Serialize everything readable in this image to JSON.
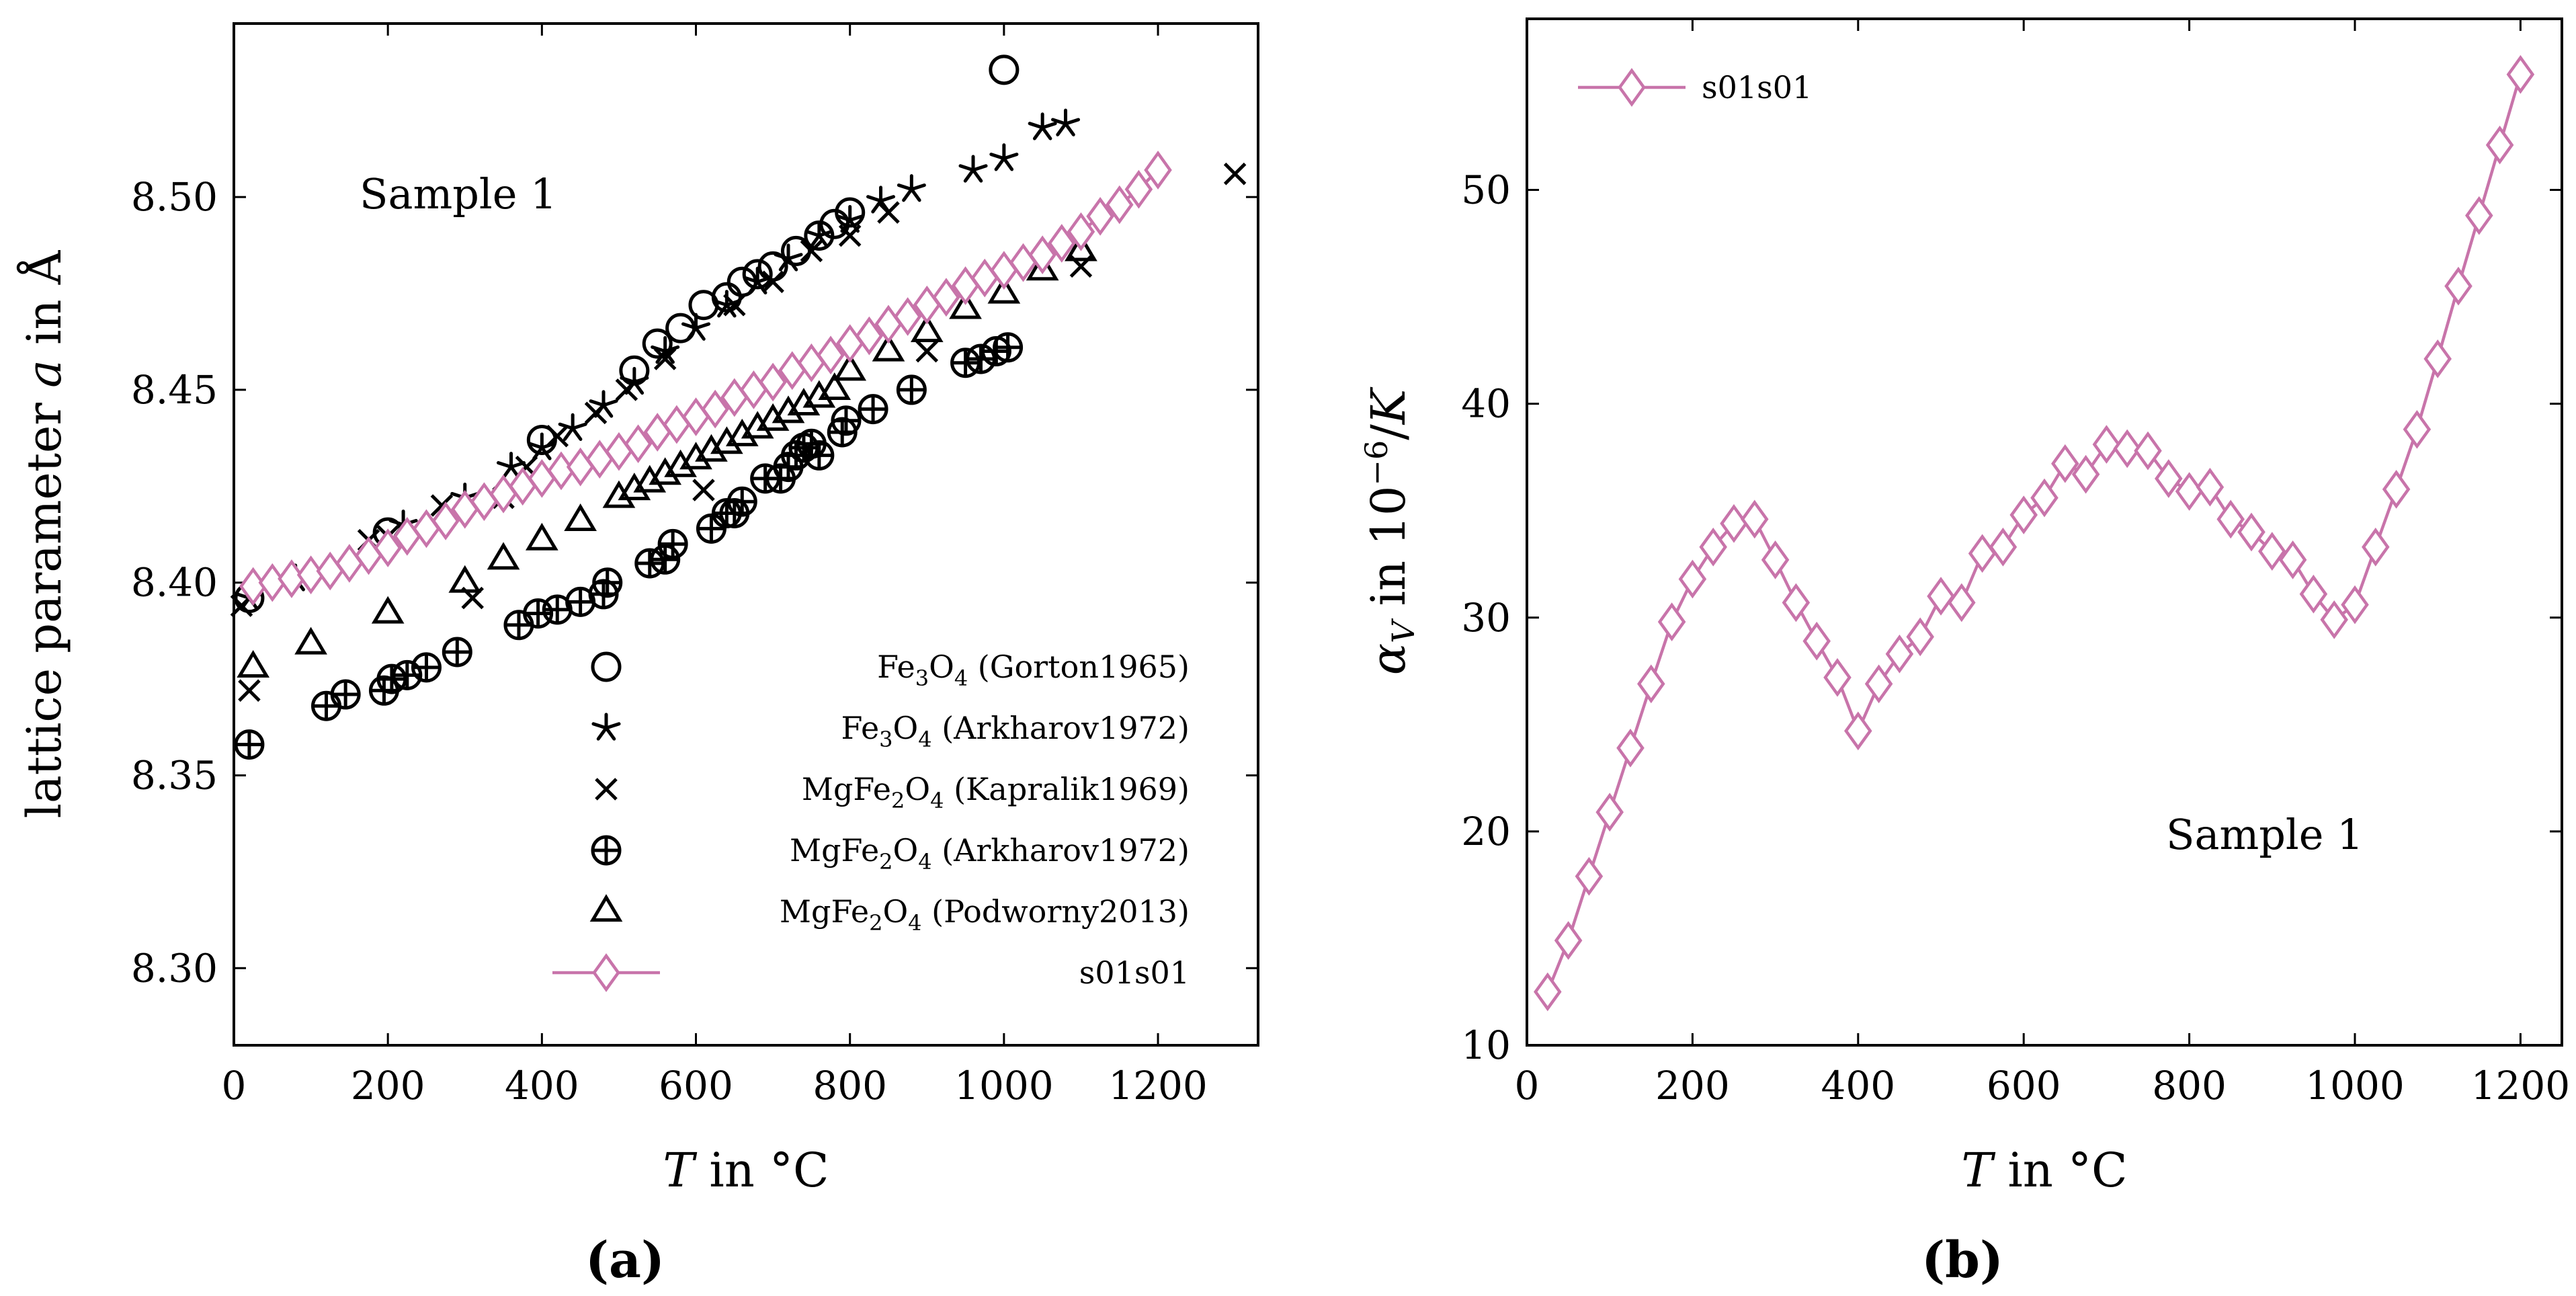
{
  "chart_data": [
    {
      "panel": "(a)",
      "type": "scatter",
      "xlabel": "T in °C",
      "ylabel": "lattice parameter a in Å",
      "xlim": [
        0,
        1330
      ],
      "ylim": [
        8.28,
        8.545
      ],
      "xticks": [
        0,
        200,
        400,
        600,
        800,
        1000,
        1200
      ],
      "yticks": [
        8.3,
        8.35,
        8.4,
        8.45,
        8.5
      ],
      "annotation": "Sample 1",
      "legend_position": "bottom-right",
      "series": [
        {
          "name": "Fe3O4 (Gorton1965)",
          "marker": "circle",
          "color": "#000000",
          "points": [
            [
              20,
              8.396
            ],
            [
              200,
              8.413
            ],
            [
              400,
              8.437
            ],
            [
              520,
              8.455
            ],
            [
              550,
              8.462
            ],
            [
              580,
              8.466
            ],
            [
              610,
              8.472
            ],
            [
              640,
              8.474
            ],
            [
              660,
              8.478
            ],
            [
              680,
              8.48
            ],
            [
              700,
              8.482
            ],
            [
              730,
              8.486
            ],
            [
              760,
              8.49
            ],
            [
              780,
              8.493
            ],
            [
              800,
              8.496
            ],
            [
              1000,
              8.533
            ]
          ]
        },
        {
          "name": "Fe3O4 (Arkharov1972)",
          "marker": "star",
          "color": "#000000",
          "points": [
            [
              20,
              8.396
            ],
            [
              80,
              8.401
            ],
            [
              220,
              8.415
            ],
            [
              300,
              8.422
            ],
            [
              360,
              8.43
            ],
            [
              400,
              8.435
            ],
            [
              440,
              8.44
            ],
            [
              480,
              8.446
            ],
            [
              520,
              8.452
            ],
            [
              560,
              8.46
            ],
            [
              600,
              8.466
            ],
            [
              640,
              8.472
            ],
            [
              680,
              8.478
            ],
            [
              720,
              8.484
            ],
            [
              760,
              8.49
            ],
            [
              800,
              8.494
            ],
            [
              840,
              8.499
            ],
            [
              880,
              8.502
            ],
            [
              960,
              8.507
            ],
            [
              1000,
              8.51
            ],
            [
              1050,
              8.518
            ],
            [
              1080,
              8.519
            ]
          ]
        },
        {
          "name": "MgFe2O4 (Kapralik1969)",
          "marker": "x",
          "color": "#000000",
          "points": [
            [
              10,
              8.394
            ],
            [
              20,
              8.372
            ],
            [
              175,
              8.411
            ],
            [
              200,
              8.412
            ],
            [
              270,
              8.42
            ],
            [
              310,
              8.396
            ],
            [
              350,
              8.422
            ],
            [
              380,
              8.43
            ],
            [
              420,
              8.438
            ],
            [
              470,
              8.444
            ],
            [
              510,
              8.45
            ],
            [
              560,
              8.458
            ],
            [
              610,
              8.424
            ],
            [
              650,
              8.472
            ],
            [
              700,
              8.478
            ],
            [
              750,
              8.486
            ],
            [
              800,
              8.49
            ],
            [
              850,
              8.496
            ],
            [
              900,
              8.46
            ],
            [
              1100,
              8.482
            ],
            [
              1300,
              8.506
            ]
          ]
        },
        {
          "name": "MgFe2O4 (Arkharov1972)",
          "marker": "circleplus",
          "color": "#000000",
          "points": [
            [
              20,
              8.358
            ],
            [
              120,
              8.368
            ],
            [
              145,
              8.371
            ],
            [
              195,
              8.372
            ],
            [
              205,
              8.375
            ],
            [
              225,
              8.376
            ],
            [
              250,
              8.378
            ],
            [
              290,
              8.382
            ],
            [
              370,
              8.389
            ],
            [
              395,
              8.392
            ],
            [
              420,
              8.393
            ],
            [
              450,
              8.395
            ],
            [
              480,
              8.397
            ],
            [
              485,
              8.4
            ],
            [
              540,
              8.405
            ],
            [
              560,
              8.406
            ],
            [
              570,
              8.41
            ],
            [
              620,
              8.414
            ],
            [
              640,
              8.418
            ],
            [
              650,
              8.418
            ],
            [
              660,
              8.421
            ],
            [
              690,
              8.427
            ],
            [
              710,
              8.427
            ],
            [
              720,
              8.43
            ],
            [
              730,
              8.433
            ],
            [
              740,
              8.435
            ],
            [
              750,
              8.436
            ],
            [
              760,
              8.433
            ],
            [
              790,
              8.439
            ],
            [
              795,
              8.442
            ],
            [
              830,
              8.445
            ],
            [
              880,
              8.45
            ],
            [
              950,
              8.457
            ],
            [
              970,
              8.458
            ],
            [
              990,
              8.46
            ],
            [
              1005,
              8.461
            ]
          ]
        },
        {
          "name": "MgFe2O4 (Podworny2013)",
          "marker": "triangle",
          "color": "#000000",
          "points": [
            [
              25,
              8.378
            ],
            [
              100,
              8.384
            ],
            [
              200,
              8.392
            ],
            [
              300,
              8.4
            ],
            [
              350,
              8.406
            ],
            [
              400,
              8.411
            ],
            [
              450,
              8.416
            ],
            [
              500,
              8.422
            ],
            [
              520,
              8.424
            ],
            [
              540,
              8.426
            ],
            [
              560,
              8.428
            ],
            [
              580,
              8.43
            ],
            [
              600,
              8.432
            ],
            [
              620,
              8.434
            ],
            [
              640,
              8.436
            ],
            [
              660,
              8.438
            ],
            [
              680,
              8.44
            ],
            [
              700,
              8.442
            ],
            [
              720,
              8.444
            ],
            [
              740,
              8.446
            ],
            [
              760,
              8.448
            ],
            [
              780,
              8.45
            ],
            [
              800,
              8.455
            ],
            [
              850,
              8.46
            ],
            [
              900,
              8.465
            ],
            [
              950,
              8.471
            ],
            [
              1000,
              8.475
            ],
            [
              1050,
              8.481
            ],
            [
              1100,
              8.486
            ]
          ]
        },
        {
          "name": "s01s01",
          "marker": "diamond",
          "line": true,
          "color": "#c874aa",
          "points": [
            [
              25,
              8.399
            ],
            [
              50,
              8.4
            ],
            [
              75,
              8.401
            ],
            [
              100,
              8.402
            ],
            [
              125,
              8.403
            ],
            [
              150,
              8.405
            ],
            [
              175,
              8.407
            ],
            [
              200,
              8.409
            ],
            [
              225,
              8.412
            ],
            [
              250,
              8.414
            ],
            [
              275,
              8.416
            ],
            [
              300,
              8.419
            ],
            [
              325,
              8.421
            ],
            [
              350,
              8.423
            ],
            [
              375,
              8.425
            ],
            [
              400,
              8.427
            ],
            [
              425,
              8.429
            ],
            [
              450,
              8.43
            ],
            [
              475,
              8.432
            ],
            [
              500,
              8.434
            ],
            [
              525,
              8.436
            ],
            [
              550,
              8.439
            ],
            [
              575,
              8.441
            ],
            [
              600,
              8.443
            ],
            [
              625,
              8.445
            ],
            [
              650,
              8.448
            ],
            [
              675,
              8.45
            ],
            [
              700,
              8.452
            ],
            [
              725,
              8.455
            ],
            [
              750,
              8.457
            ],
            [
              775,
              8.459
            ],
            [
              800,
              8.462
            ],
            [
              825,
              8.464
            ],
            [
              850,
              8.467
            ],
            [
              875,
              8.469
            ],
            [
              900,
              8.472
            ],
            [
              925,
              8.474
            ],
            [
              950,
              8.477
            ],
            [
              975,
              8.479
            ],
            [
              1000,
              8.481
            ],
            [
              1025,
              8.483
            ],
            [
              1050,
              8.485
            ],
            [
              1075,
              8.488
            ],
            [
              1100,
              8.491
            ],
            [
              1125,
              8.495
            ],
            [
              1150,
              8.498
            ],
            [
              1175,
              8.502
            ],
            [
              1200,
              8.507
            ]
          ]
        }
      ]
    },
    {
      "panel": "(b)",
      "type": "line",
      "xlabel": "T in °C",
      "ylabel": "αV in 10⁻⁶/K",
      "xlim": [
        0,
        1250
      ],
      "ylim": [
        10,
        58
      ],
      "xticks": [
        0,
        200,
        400,
        600,
        800,
        1000,
        1200
      ],
      "yticks": [
        10,
        20,
        30,
        40,
        50
      ],
      "annotation": "Sample 1",
      "legend_position": "top-left",
      "series": [
        {
          "name": "s01s01",
          "marker": "diamond",
          "color": "#c874aa",
          "x": [
            25,
            50,
            75,
            100,
            125,
            150,
            175,
            200,
            225,
            250,
            275,
            300,
            325,
            350,
            375,
            400,
            425,
            450,
            475,
            500,
            525,
            550,
            575,
            600,
            625,
            650,
            675,
            700,
            725,
            750,
            775,
            800,
            825,
            850,
            875,
            900,
            925,
            950,
            975,
            1000,
            1025,
            1050,
            1075,
            1100,
            1125,
            1150,
            1175,
            1200
          ],
          "y": [
            12.5,
            14.9,
            17.9,
            20.9,
            23.9,
            26.9,
            29.8,
            31.8,
            33.3,
            34.4,
            34.6,
            32.7,
            30.7,
            28.9,
            27.2,
            24.7,
            26.9,
            28.3,
            29.1,
            31.0,
            30.7,
            33.0,
            33.3,
            34.8,
            35.6,
            37.2,
            36.7,
            38.1,
            37.9,
            37.8,
            36.5,
            35.9,
            36.1,
            34.6,
            34.0,
            33.1,
            32.7,
            31.1,
            29.9,
            30.6,
            33.3,
            36.0,
            38.8,
            42.1,
            45.5,
            48.8,
            52.1,
            55.4
          ]
        }
      ]
    }
  ]
}
